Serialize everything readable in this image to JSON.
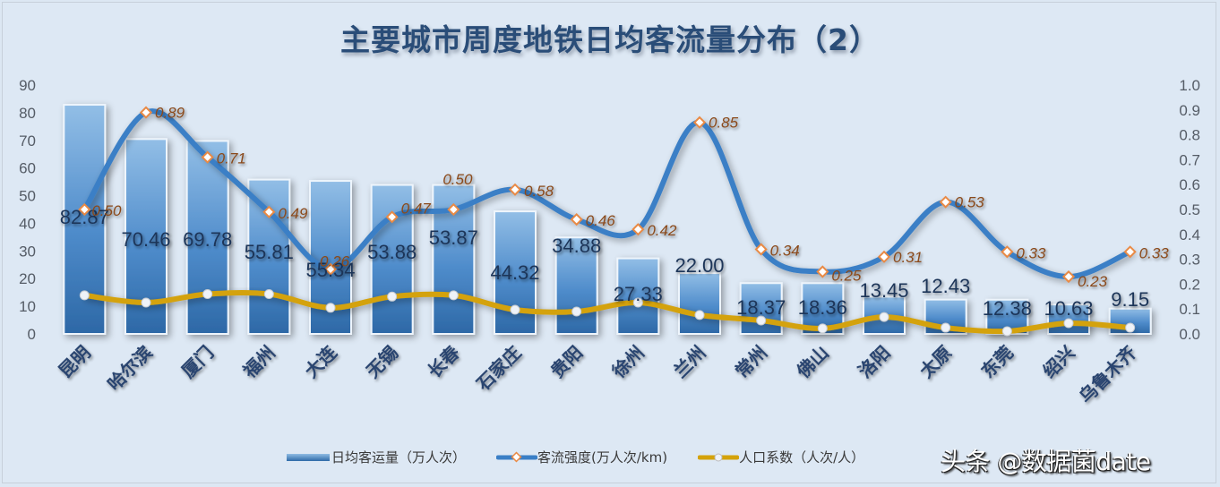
{
  "chart_data": {
    "type": "bar",
    "title": "主要城市周度地铁日均客流量分布（2）",
    "xlabel": "",
    "ylabel": "",
    "ylim": [
      0,
      90
    ],
    "y2lim": [
      0.0,
      1.0
    ],
    "grid": false,
    "legend_position": "bottom",
    "categories": [
      "昆明",
      "哈尔滨",
      "厦门",
      "福州",
      "大连",
      "无锡",
      "长春",
      "石家庄",
      "贵阳",
      "徐州",
      "兰州",
      "常州",
      "佛山",
      "洛阳",
      "太原",
      "东莞",
      "绍兴",
      "乌鲁木齐"
    ],
    "series": [
      {
        "name": "日均客运量（万人次）",
        "type": "bar",
        "axis": "left",
        "values": [
          82.87,
          70.46,
          69.78,
          55.81,
          55.34,
          53.88,
          53.87,
          44.32,
          34.88,
          27.33,
          22.0,
          18.37,
          18.36,
          13.45,
          12.43,
          12.38,
          10.63,
          9.15
        ]
      },
      {
        "name": "客流强度(万人次/km)",
        "type": "line",
        "axis": "right",
        "values": [
          0.5,
          0.89,
          0.71,
          0.49,
          0.26,
          0.47,
          0.5,
          0.58,
          0.46,
          0.42,
          0.85,
          0.34,
          0.25,
          0.31,
          0.53,
          0.33,
          0.23,
          0.33
        ]
      },
      {
        "name": "人口系数（人次/人）",
        "type": "line",
        "axis": "right",
        "values": [
          0.155,
          0.126,
          0.16,
          0.16,
          0.105,
          0.15,
          0.155,
          0.097,
          0.09,
          0.126,
          0.076,
          0.054,
          0.022,
          0.068,
          0.025,
          0.011,
          0.043,
          0.025
        ]
      }
    ],
    "left_ticks": [
      "0",
      "10",
      "20",
      "30",
      "40",
      "50",
      "60",
      "70",
      "80",
      "90"
    ],
    "right_ticks": [
      "0.0",
      "0.1",
      "0.2",
      "0.3",
      "0.4",
      "0.5",
      "0.6",
      "0.7",
      "0.8",
      "0.9",
      "1.0"
    ],
    "bar_labels": [
      "82.87",
      "70.46",
      "69.78",
      "55.81",
      "55.34",
      "53.88",
      "53.87",
      "44.32",
      "34.88",
      "27.33",
      "22.00",
      "18.37",
      "18.36",
      "13.45",
      "12.43",
      "12.38",
      "10.63",
      "9.15"
    ],
    "intensity_labels": [
      "0.50",
      "0.89",
      "0.71",
      "0.49",
      "0.26",
      "0.47",
      "0.50",
      "0.58",
      "0.46",
      "0.42",
      "0.85",
      "0.34",
      "0.25",
      "0.31",
      "0.53",
      "0.33",
      "0.23",
      "0.33"
    ]
  },
  "colors": {
    "bar_top": "#8fbbe3",
    "bar_bottom": "#2e6aa8",
    "intensity_line": "#3a7fc6",
    "intensity_marker": "#e98a45",
    "population_line": "#d4a20a",
    "title": "#2a4d78",
    "bar_label": "#1f3559",
    "intensity_label": "#8a4a1a",
    "background": "#dde8f4"
  },
  "legend": {
    "bar": "日均客运量（万人次）",
    "intensity": "客流强度(万人次/km)",
    "population": "人口系数（人次/人）"
  },
  "watermark": "头条 @数据菌date"
}
